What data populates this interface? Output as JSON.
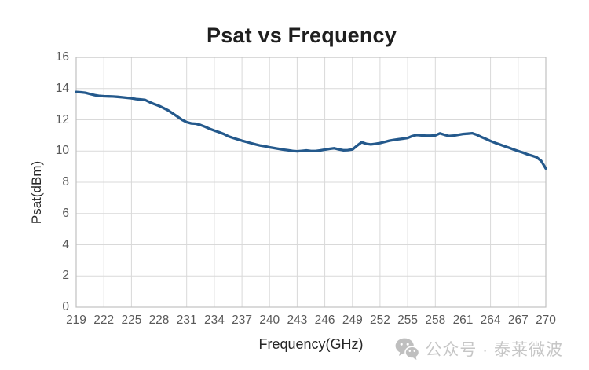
{
  "chart_data": {
    "type": "line",
    "title": "Psat vs Frequency",
    "xlabel": "Frequency(GHz)",
    "ylabel": "Psat(dBm)",
    "xlim": [
      219,
      270
    ],
    "ylim": [
      0,
      16
    ],
    "x_ticks": [
      219,
      222,
      225,
      228,
      231,
      234,
      237,
      240,
      243,
      246,
      249,
      252,
      255,
      258,
      261,
      264,
      267,
      270
    ],
    "y_ticks": [
      0,
      2,
      4,
      6,
      8,
      10,
      12,
      14,
      16
    ],
    "grid": true,
    "legend_position": "none",
    "series": [
      {
        "name": "Psat",
        "color": "#24598C",
        "points": [
          [
            219,
            13.78
          ],
          [
            219.5,
            13.76
          ],
          [
            220,
            13.73
          ],
          [
            220.5,
            13.65
          ],
          [
            221,
            13.58
          ],
          [
            221.5,
            13.53
          ],
          [
            222,
            13.51
          ],
          [
            222.5,
            13.5
          ],
          [
            223,
            13.49
          ],
          [
            223.5,
            13.47
          ],
          [
            224,
            13.44
          ],
          [
            224.5,
            13.41
          ],
          [
            225,
            13.38
          ],
          [
            225.5,
            13.33
          ],
          [
            226,
            13.3
          ],
          [
            226.5,
            13.27
          ],
          [
            227,
            13.12
          ],
          [
            227.5,
            13.0
          ],
          [
            228,
            12.89
          ],
          [
            228.5,
            12.75
          ],
          [
            229,
            12.6
          ],
          [
            229.5,
            12.4
          ],
          [
            230,
            12.2
          ],
          [
            230.5,
            12.0
          ],
          [
            231,
            11.85
          ],
          [
            231.5,
            11.77
          ],
          [
            232,
            11.75
          ],
          [
            232.5,
            11.67
          ],
          [
            233,
            11.55
          ],
          [
            233.5,
            11.42
          ],
          [
            234,
            11.31
          ],
          [
            234.5,
            11.21
          ],
          [
            235,
            11.1
          ],
          [
            235.5,
            10.95
          ],
          [
            236,
            10.85
          ],
          [
            236.5,
            10.75
          ],
          [
            237,
            10.66
          ],
          [
            237.5,
            10.58
          ],
          [
            238,
            10.5
          ],
          [
            238.5,
            10.42
          ],
          [
            239,
            10.35
          ],
          [
            239.5,
            10.3
          ],
          [
            240,
            10.24
          ],
          [
            240.5,
            10.19
          ],
          [
            241,
            10.14
          ],
          [
            241.5,
            10.09
          ],
          [
            242,
            10.05
          ],
          [
            242.5,
            10.01
          ],
          [
            243,
            9.98
          ],
          [
            243.5,
            10.01
          ],
          [
            244,
            10.04
          ],
          [
            244.5,
            10.0
          ],
          [
            245,
            10.0
          ],
          [
            245.5,
            10.04
          ],
          [
            246,
            10.09
          ],
          [
            246.5,
            10.14
          ],
          [
            247,
            10.18
          ],
          [
            247.5,
            10.11
          ],
          [
            248,
            10.05
          ],
          [
            248.5,
            10.06
          ],
          [
            249,
            10.1
          ],
          [
            249.5,
            10.34
          ],
          [
            250,
            10.56
          ],
          [
            250.5,
            10.46
          ],
          [
            251,
            10.42
          ],
          [
            251.5,
            10.46
          ],
          [
            252,
            10.51
          ],
          [
            252.5,
            10.58
          ],
          [
            253,
            10.66
          ],
          [
            253.5,
            10.71
          ],
          [
            254,
            10.75
          ],
          [
            254.5,
            10.79
          ],
          [
            255,
            10.84
          ],
          [
            255.5,
            10.96
          ],
          [
            256,
            11.03
          ],
          [
            256.5,
            11.0
          ],
          [
            257,
            10.98
          ],
          [
            257.5,
            10.98
          ],
          [
            258,
            11.0
          ],
          [
            258.5,
            11.13
          ],
          [
            259,
            11.04
          ],
          [
            259.5,
            10.96
          ],
          [
            260,
            10.99
          ],
          [
            260.5,
            11.04
          ],
          [
            261,
            11.09
          ],
          [
            261.5,
            11.11
          ],
          [
            262,
            11.14
          ],
          [
            262.5,
            11.04
          ],
          [
            263,
            10.9
          ],
          [
            263.5,
            10.77
          ],
          [
            264,
            10.64
          ],
          [
            264.5,
            10.52
          ],
          [
            265,
            10.42
          ],
          [
            265.5,
            10.31
          ],
          [
            266,
            10.21
          ],
          [
            266.5,
            10.1
          ],
          [
            267,
            10.0
          ],
          [
            267.5,
            9.9
          ],
          [
            268,
            9.79
          ],
          [
            268.5,
            9.7
          ],
          [
            269,
            9.6
          ],
          [
            269.5,
            9.37
          ],
          [
            270,
            8.88
          ]
        ]
      }
    ]
  },
  "watermark": {
    "icon": "wechat-icon",
    "text": "公众号 · 泰莱微波",
    "color": "#c6c6c6"
  },
  "colors": {
    "background": "#ffffff",
    "gridline": "#d9d9d9",
    "axis_line": "#c0c0c0",
    "tick_label": "#595959",
    "title": "#1f1f1f",
    "axis_title": "#262626",
    "line": "#24598C",
    "watermark": "#c6c6c6"
  }
}
